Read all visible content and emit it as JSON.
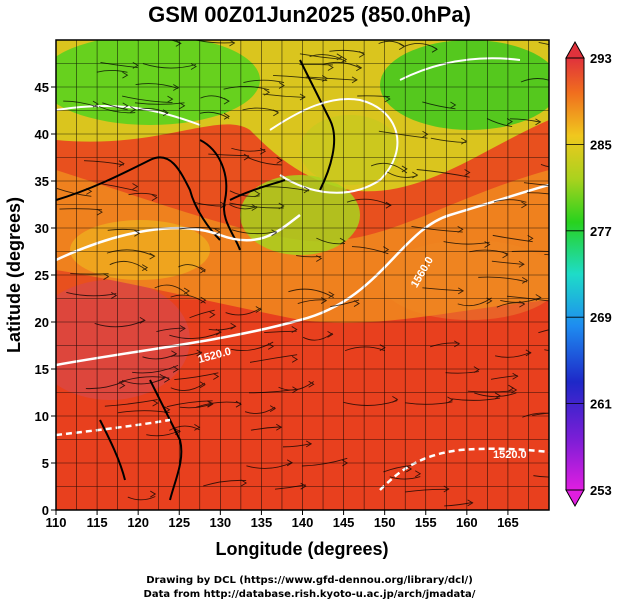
{
  "title": "GSM 00Z01Jun2025 (850.0hPa)",
  "map": {
    "xlabel": "Longitude (degrees)",
    "ylabel": "Latitude  (degrees)",
    "xticks": [
      "110",
      "115",
      "120",
      "125",
      "130",
      "135",
      "140",
      "145",
      "150",
      "155",
      "160",
      "165"
    ],
    "yticks": [
      "0",
      "5",
      "10",
      "15",
      "20",
      "25",
      "30",
      "35",
      "40",
      "45"
    ],
    "xrange": [
      110,
      170
    ],
    "yrange": [
      0,
      50
    ],
    "grid": true,
    "colorbar": {
      "labels": [
        "293",
        "285",
        "277",
        "269",
        "261",
        "253"
      ],
      "min": 253,
      "max": 293
    },
    "contour_labels": [
      "1560.0",
      "1520.0",
      "1520.0",
      "1520.0"
    ]
  },
  "credits": {
    "line1": "Drawing by DCL (https://www.gfd-dennou.org/library/dcl/)",
    "line2": "Data from http://database.rish.kyoto-u.ac.jp/arch/jmadata/"
  }
}
